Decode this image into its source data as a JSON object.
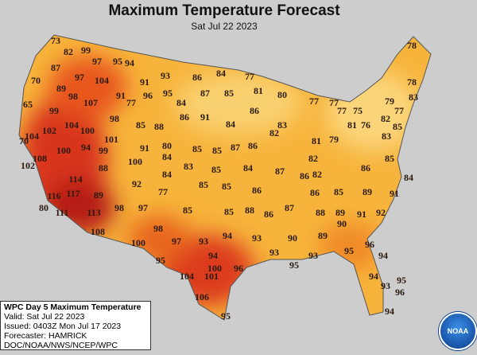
{
  "title": "Maximum Temperature Forecast",
  "date": "Sat Jul 22 2023",
  "info": [
    "WPC Day 5 Maximum Temperature",
    "Valid: Sat Jul 22 2023",
    "Issued: 0403Z Mon Jul 17 2023",
    "Forecaster: HAMRICK",
    "DOC/NOAA/NWS/NCEP/WPC"
  ],
  "logo": "NOAA",
  "temperatures": [
    73,
    82,
    99,
    97,
    95,
    94,
    87,
    97,
    104,
    91,
    93,
    86,
    84,
    77,
    78,
    70,
    89,
    98,
    107,
    91,
    96,
    95,
    87,
    85,
    81,
    80,
    78,
    65,
    99,
    77,
    98,
    84,
    86,
    83,
    77,
    77,
    79,
    77,
    83,
    104,
    100,
    102,
    104,
    85,
    88,
    86,
    91,
    84,
    82,
    77,
    75,
    82,
    85,
    70,
    94,
    101,
    100,
    99,
    91,
    80,
    85,
    85,
    87,
    86,
    81,
    79,
    81,
    76,
    83,
    102,
    108,
    88,
    100,
    84,
    83,
    85,
    84,
    87,
    82,
    82,
    86,
    86,
    85,
    84,
    114,
    92,
    84,
    77,
    85,
    85,
    86,
    86,
    85,
    89,
    91,
    116,
    117,
    89,
    98,
    97,
    85,
    85,
    88,
    86,
    87,
    88,
    89,
    91,
    92,
    80,
    111,
    113,
    90,
    89,
    90,
    108,
    98,
    94,
    93,
    100,
    97,
    93,
    95,
    96,
    93,
    95,
    94,
    95,
    93,
    100,
    104,
    101,
    96,
    94,
    93,
    95,
    94,
    106,
    96,
    95,
    94
  ]
}
